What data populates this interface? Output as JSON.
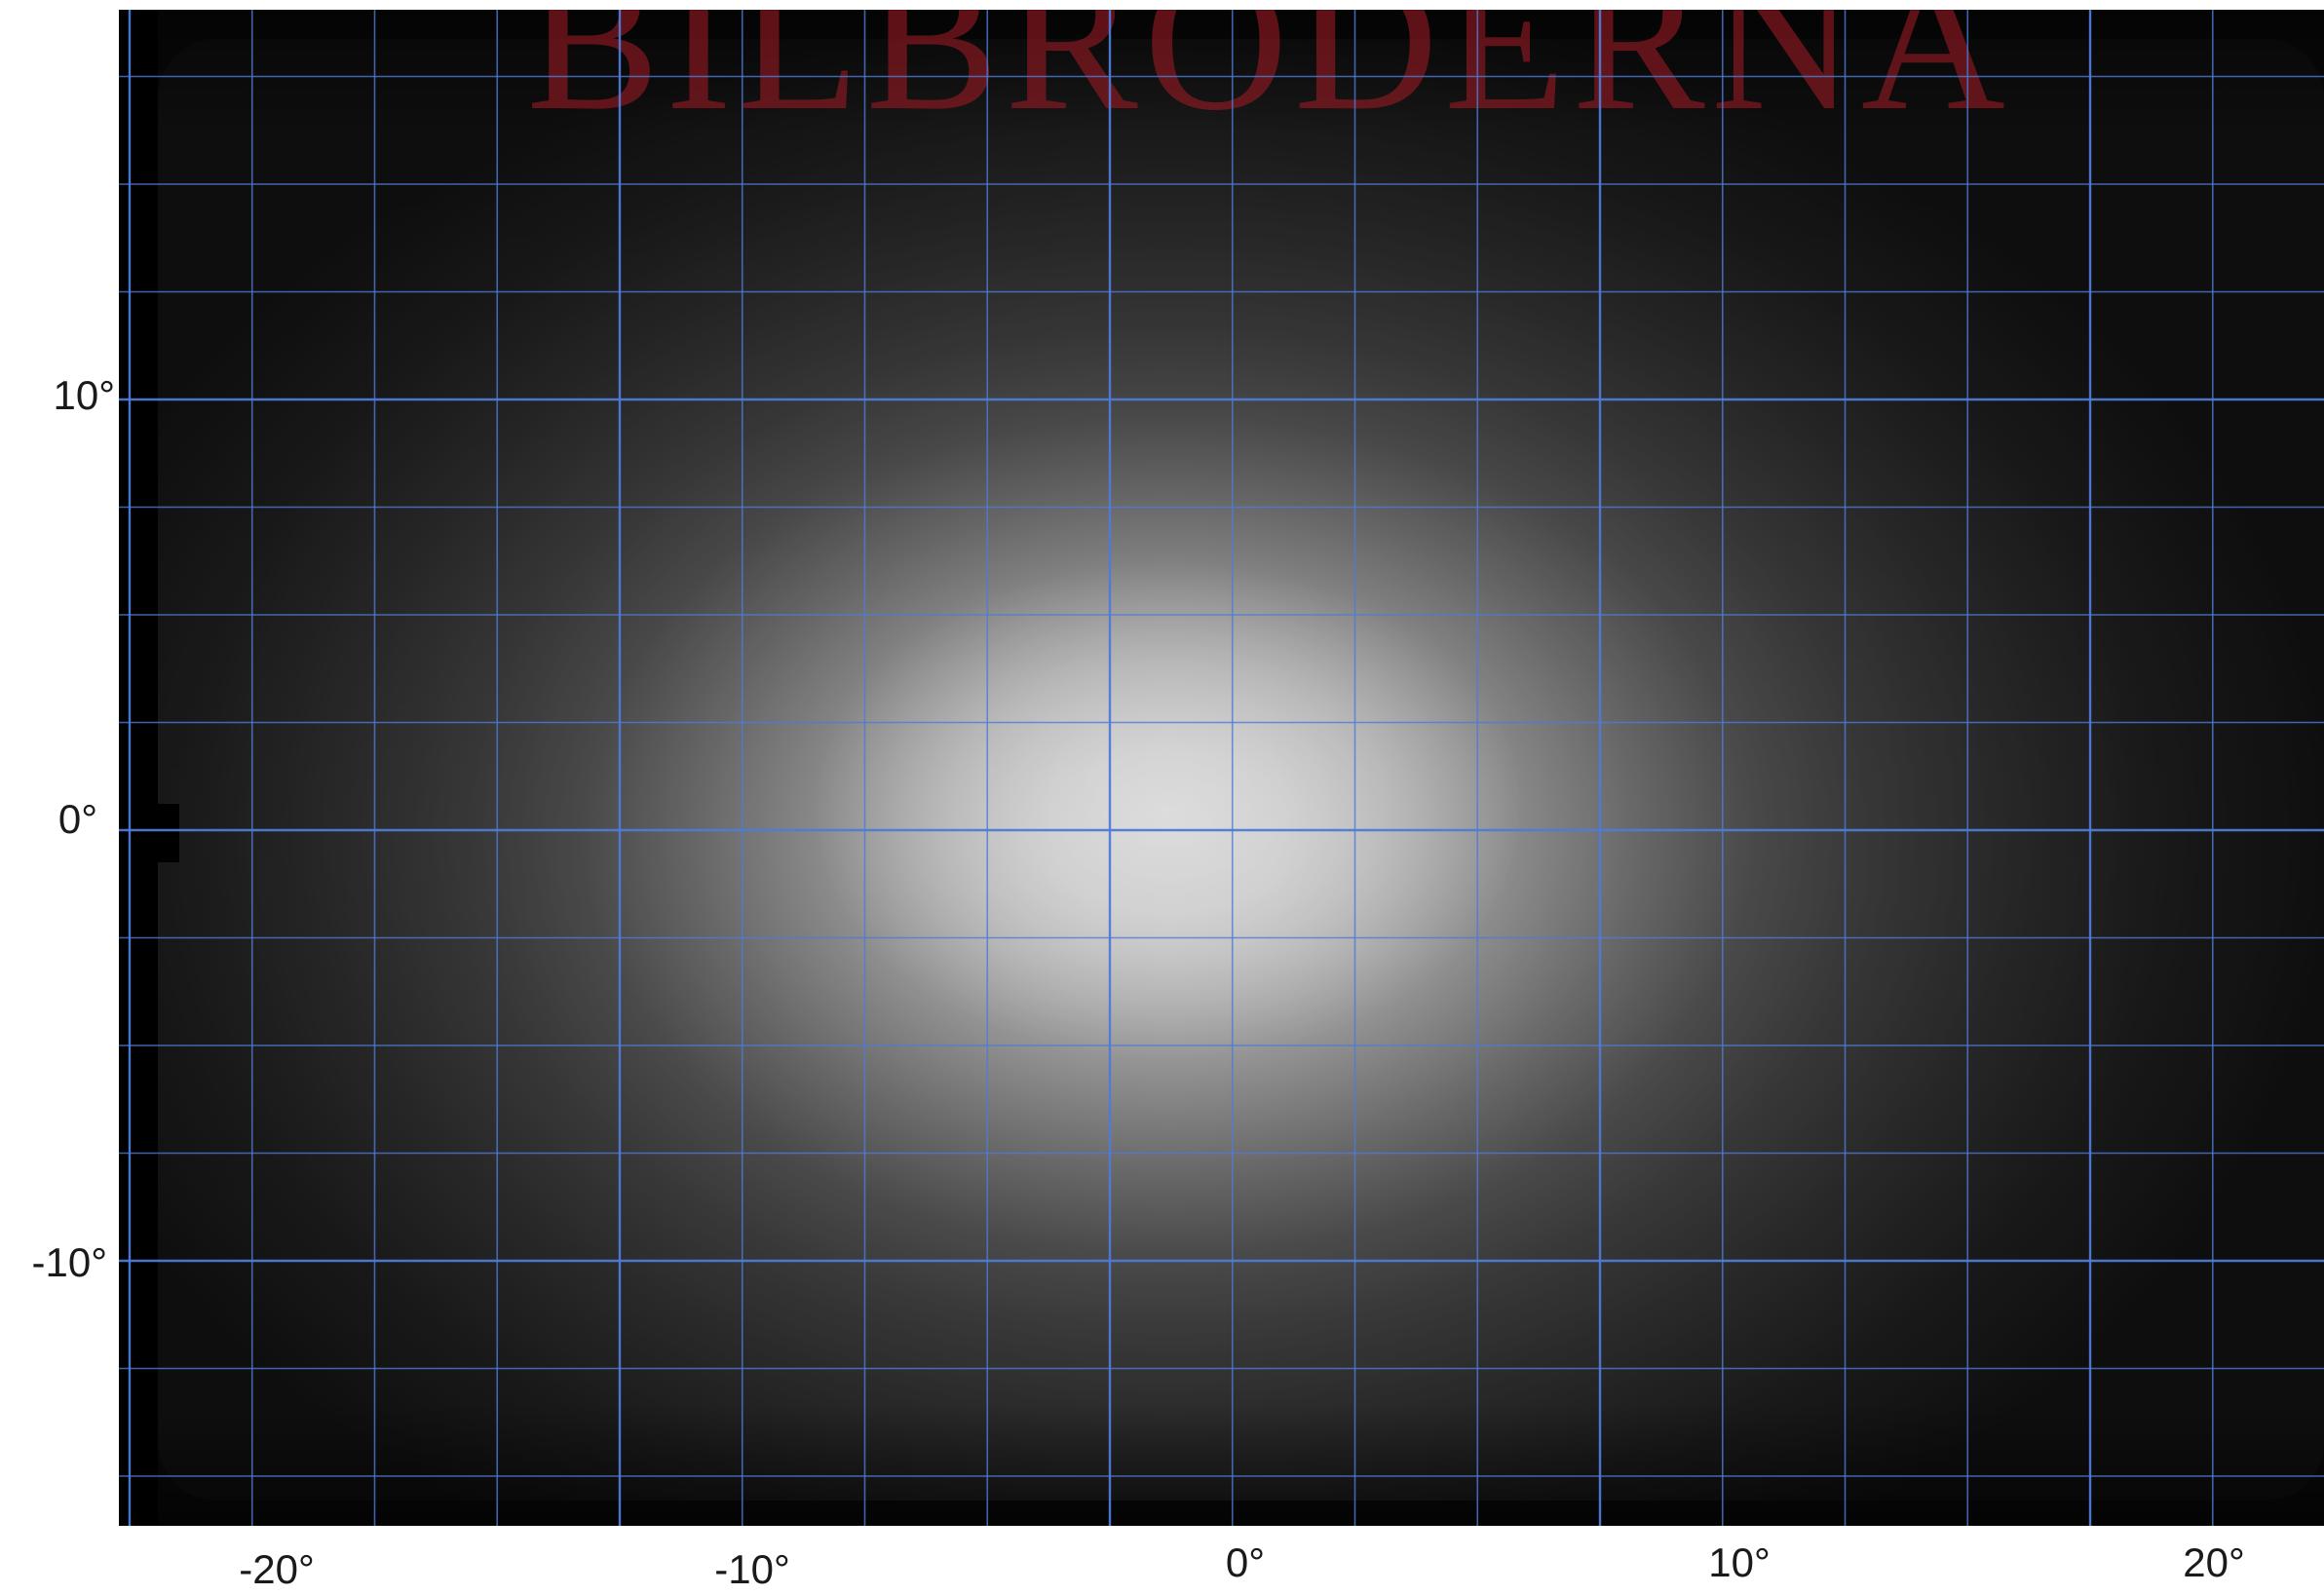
{
  "image": {
    "watermark_text": "BILBRODERNA",
    "watermark_color": "#961c24",
    "grid_color": "#4f7bd6",
    "background_color": "#050505",
    "hotspot_color": "#f2f2f2",
    "x_axis": {
      "range": [
        -20,
        20
      ],
      "tick_labels": [
        "-20°",
        "-10°",
        "0°",
        "10°",
        "20°"
      ]
    },
    "y_axis": {
      "range": [
        -10,
        10
      ],
      "tick_labels": [
        "10°",
        "0°",
        "-10°"
      ]
    },
    "grid_step_minor_deg": 2.5,
    "grid_step_major_deg": 10
  }
}
